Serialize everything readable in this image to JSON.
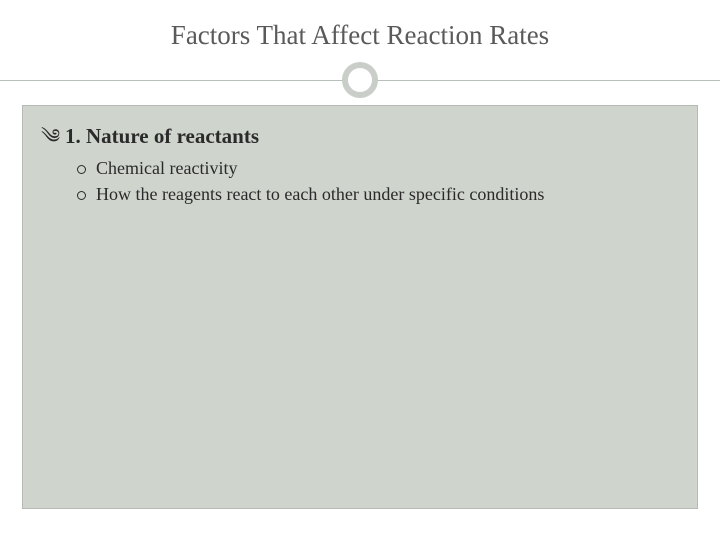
{
  "slide": {
    "title": "Factors That Affect Reaction Rates",
    "title_fontsize": 27,
    "title_color": "#5a5a5a",
    "background_color": "#ffffff",
    "divider_color": "#b9bfb9",
    "circle_border_color": "#c9cec9",
    "content_box": {
      "background_color": "#cfd4cd",
      "border_color": "#b6bcb5"
    },
    "main_item": {
      "bullet_glyph": "༄",
      "text": "1. Nature of reactants",
      "fontsize": 21,
      "fontweight": "700",
      "color": "#2a2a2a"
    },
    "sub_items": [
      {
        "text": "Chemical reactivity"
      },
      {
        "text": "How the reagents react to each other under specific conditions"
      }
    ],
    "sub_item_style": {
      "fontsize": 18,
      "color": "#2a2a2a",
      "bullet_border_color": "#2a2a2a"
    }
  }
}
